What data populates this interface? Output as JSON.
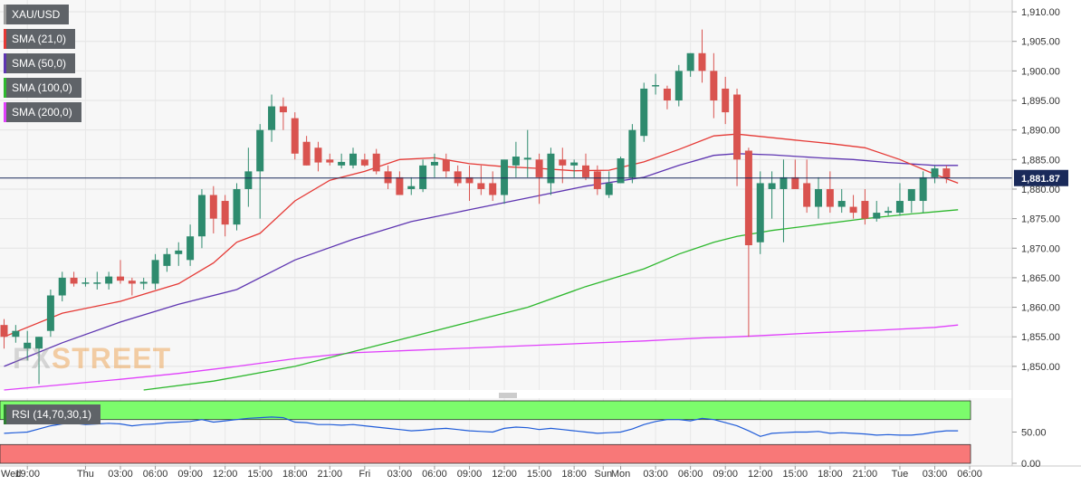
{
  "watermark": {
    "part1": "FX",
    "part2": "STREET"
  },
  "legend": [
    {
      "label": "XAU/USD",
      "color": "#9e9e9e"
    },
    {
      "label": "SMA (21,0)",
      "color": "#e53935"
    },
    {
      "label": "SMA (50,0)",
      "color": "#5e35b1"
    },
    {
      "label": "SMA (100,0)",
      "color": "#2eb82e"
    },
    {
      "label": "SMA (200,0)",
      "color": "#e040fb"
    }
  ],
  "chart_data": {
    "type": "candlestick",
    "instrument": "XAU/USD",
    "price_axis": {
      "range": [
        1846,
        1912
      ],
      "ticks": [
        "1,910.00",
        "1,905.00",
        "1,900.00",
        "1,895.00",
        "1,890.00",
        "1,885.00",
        "1,880.00",
        "1,875.00",
        "1,870.00",
        "1,865.00",
        "1,860.00",
        "1,855.00",
        "1,850.00"
      ],
      "tick_values": [
        1910,
        1905,
        1900,
        1895,
        1890,
        1885,
        1880,
        1875,
        1870,
        1865,
        1860,
        1855,
        1850
      ]
    },
    "last_price": {
      "value": 1881.87,
      "label": "1,881.87"
    },
    "time_axis": {
      "labels": [
        "Wed",
        "19:00",
        "Thu",
        "03:00",
        "06:00",
        "09:00",
        "12:00",
        "15:00",
        "18:00",
        "21:00",
        "Fri",
        "03:00",
        "06:00",
        "09:00",
        "12:00",
        "15:00",
        "18:00",
        "Sun",
        "Mon",
        "03:00",
        "06:00",
        "09:00",
        "12:00",
        "15:00",
        "18:00",
        "21:00",
        "Tue",
        "03:00",
        "06:00"
      ],
      "positions": [
        -1,
        2,
        7,
        10,
        13,
        16,
        19,
        22,
        25,
        28,
        31,
        34,
        37,
        40,
        43,
        46,
        49,
        51.5,
        53,
        56,
        59,
        62,
        65,
        68,
        71,
        74,
        77,
        80,
        83
      ]
    },
    "candles": [
      {
        "o": 1857.0,
        "h": 1858.0,
        "l": 1853.0,
        "c": 1855.0
      },
      {
        "o": 1855.0,
        "h": 1857.0,
        "l": 1854.0,
        "c": 1856.0
      },
      {
        "o": 1853.0,
        "h": 1856.0,
        "l": 1851.0,
        "c": 1854.0
      },
      {
        "o": 1853.0,
        "h": 1855.0,
        "l": 1847.0,
        "c": 1855.0
      },
      {
        "o": 1856.0,
        "h": 1863.0,
        "l": 1855.0,
        "c": 1862.0
      },
      {
        "o": 1862.0,
        "h": 1866.0,
        "l": 1861.0,
        "c": 1865.0
      },
      {
        "o": 1865.0,
        "h": 1866.0,
        "l": 1863.5,
        "c": 1864.0
      },
      {
        "o": 1864.0,
        "h": 1865.0,
        "l": 1863.5,
        "c": 1864.2
      },
      {
        "o": 1864.0,
        "h": 1866.0,
        "l": 1863.0,
        "c": 1864.2
      },
      {
        "o": 1864.0,
        "h": 1866.0,
        "l": 1863.0,
        "c": 1865.2
      },
      {
        "o": 1865.2,
        "h": 1868.0,
        "l": 1864.0,
        "c": 1864.5
      },
      {
        "o": 1864.5,
        "h": 1865.0,
        "l": 1862.0,
        "c": 1864.0
      },
      {
        "o": 1864.0,
        "h": 1865.0,
        "l": 1863.0,
        "c": 1864.3
      },
      {
        "o": 1864.0,
        "h": 1869.0,
        "l": 1863.0,
        "c": 1868.0
      },
      {
        "o": 1867.0,
        "h": 1870.0,
        "l": 1866.0,
        "c": 1869.0
      },
      {
        "o": 1869.0,
        "h": 1871.0,
        "l": 1867.0,
        "c": 1869.6
      },
      {
        "o": 1868.0,
        "h": 1874.0,
        "l": 1867.0,
        "c": 1872.0
      },
      {
        "o": 1872.0,
        "h": 1880.0,
        "l": 1870.0,
        "c": 1879.0
      },
      {
        "o": 1879.0,
        "h": 1880.5,
        "l": 1872.5,
        "c": 1875.0
      },
      {
        "o": 1878.0,
        "h": 1879.0,
        "l": 1872.0,
        "c": 1874.0
      },
      {
        "o": 1874.0,
        "h": 1881.0,
        "l": 1873.0,
        "c": 1880.0
      },
      {
        "o": 1880.0,
        "h": 1887.0,
        "l": 1877.0,
        "c": 1883.0
      },
      {
        "o": 1883.0,
        "h": 1891.0,
        "l": 1875.0,
        "c": 1890.0
      },
      {
        "o": 1890.0,
        "h": 1896.0,
        "l": 1888.0,
        "c": 1894.0
      },
      {
        "o": 1894.0,
        "h": 1895.5,
        "l": 1890.0,
        "c": 1893.0
      },
      {
        "o": 1892.0,
        "h": 1893.0,
        "l": 1885.0,
        "c": 1886.0
      },
      {
        "o": 1888.0,
        "h": 1889.0,
        "l": 1884.0,
        "c": 1884.0
      },
      {
        "o": 1887.0,
        "h": 1888.0,
        "l": 1883.0,
        "c": 1884.5
      },
      {
        "o": 1885.0,
        "h": 1886.0,
        "l": 1884.0,
        "c": 1884.5
      },
      {
        "o": 1884.0,
        "h": 1886.0,
        "l": 1883.5,
        "c": 1884.6
      },
      {
        "o": 1884.0,
        "h": 1887.0,
        "l": 1883.5,
        "c": 1886.0
      },
      {
        "o": 1885.0,
        "h": 1886.0,
        "l": 1883.8,
        "c": 1884.0
      },
      {
        "o": 1886.0,
        "h": 1886.8,
        "l": 1882.5,
        "c": 1883.0
      },
      {
        "o": 1883.0,
        "h": 1884.0,
        "l": 1880.0,
        "c": 1881.0
      },
      {
        "o": 1882.0,
        "h": 1883.0,
        "l": 1879.0,
        "c": 1879.0
      },
      {
        "o": 1880.0,
        "h": 1882.0,
        "l": 1879.0,
        "c": 1880.5
      },
      {
        "o": 1880.0,
        "h": 1885.0,
        "l": 1879.5,
        "c": 1884.0
      },
      {
        "o": 1884.0,
        "h": 1886.0,
        "l": 1882.0,
        "c": 1884.6
      },
      {
        "o": 1885.0,
        "h": 1886.0,
        "l": 1882.0,
        "c": 1883.0
      },
      {
        "o": 1883.0,
        "h": 1884.0,
        "l": 1880.5,
        "c": 1881.0
      },
      {
        "o": 1882.0,
        "h": 1884.0,
        "l": 1878.0,
        "c": 1881.0
      },
      {
        "o": 1881.0,
        "h": 1884.0,
        "l": 1879.0,
        "c": 1880.0
      },
      {
        "o": 1881.0,
        "h": 1883.0,
        "l": 1878.0,
        "c": 1879.0
      },
      {
        "o": 1879.0,
        "h": 1885.0,
        "l": 1877.5,
        "c": 1885.0
      },
      {
        "o": 1884.0,
        "h": 1888.0,
        "l": 1882.0,
        "c": 1885.5
      },
      {
        "o": 1885.0,
        "h": 1890.0,
        "l": 1882.0,
        "c": 1885.3
      },
      {
        "o": 1885.0,
        "h": 1886.0,
        "l": 1877.5,
        "c": 1882.0
      },
      {
        "o": 1881.0,
        "h": 1887.0,
        "l": 1879.0,
        "c": 1886.0
      },
      {
        "o": 1885.0,
        "h": 1887.0,
        "l": 1881.0,
        "c": 1884.0
      },
      {
        "o": 1884.0,
        "h": 1885.0,
        "l": 1882.0,
        "c": 1884.5
      },
      {
        "o": 1884.0,
        "h": 1886.0,
        "l": 1881.5,
        "c": 1882.0
      },
      {
        "o": 1883.0,
        "h": 1884.0,
        "l": 1879.0,
        "c": 1880.0
      },
      {
        "o": 1879.0,
        "h": 1883.0,
        "l": 1878.5,
        "c": 1881.0
      },
      {
        "o": 1881.0,
        "h": 1885.5,
        "l": 1881.0,
        "c": 1885.2
      },
      {
        "o": 1882.0,
        "h": 1891.0,
        "l": 1881.0,
        "c": 1890.0
      },
      {
        "o": 1889.0,
        "h": 1898.0,
        "l": 1888.0,
        "c": 1897.0
      },
      {
        "o": 1897.5,
        "h": 1899.5,
        "l": 1896.0,
        "c": 1897.6
      },
      {
        "o": 1897.0,
        "h": 1897.5,
        "l": 1893.5,
        "c": 1895.0
      },
      {
        "o": 1895.0,
        "h": 1901.0,
        "l": 1894.0,
        "c": 1900.0
      },
      {
        "o": 1900.0,
        "h": 1903.0,
        "l": 1899.0,
        "c": 1903.0
      },
      {
        "o": 1903.0,
        "h": 1907.0,
        "l": 1898.0,
        "c": 1900.0
      },
      {
        "o": 1900.0,
        "h": 1903.0,
        "l": 1892.0,
        "c": 1895.0
      },
      {
        "o": 1897.0,
        "h": 1899.0,
        "l": 1891.0,
        "c": 1893.0
      },
      {
        "o": 1896.0,
        "h": 1897.0,
        "l": 1880.5,
        "c": 1885.0
      },
      {
        "o": 1886.5,
        "h": 1887.0,
        "l": 1855.0,
        "c": 1870.5
      },
      {
        "o": 1871.0,
        "h": 1883.0,
        "l": 1869.0,
        "c": 1881.0
      },
      {
        "o": 1880.0,
        "h": 1883.0,
        "l": 1875.0,
        "c": 1881.0
      },
      {
        "o": 1880.0,
        "h": 1885.0,
        "l": 1871.0,
        "c": 1882.0
      },
      {
        "o": 1882.0,
        "h": 1885.0,
        "l": 1880.0,
        "c": 1880.0
      },
      {
        "o": 1881.0,
        "h": 1885.0,
        "l": 1876.0,
        "c": 1877.0
      },
      {
        "o": 1877.0,
        "h": 1882.0,
        "l": 1875.0,
        "c": 1880.0
      },
      {
        "o": 1880.0,
        "h": 1883.0,
        "l": 1876.0,
        "c": 1877.0
      },
      {
        "o": 1877.0,
        "h": 1880.0,
        "l": 1876.0,
        "c": 1878.0
      },
      {
        "o": 1877.0,
        "h": 1879.0,
        "l": 1875.0,
        "c": 1876.0
      },
      {
        "o": 1878.0,
        "h": 1880.0,
        "l": 1874.0,
        "c": 1875.0
      },
      {
        "o": 1875.0,
        "h": 1878.0,
        "l": 1874.5,
        "c": 1876.0
      },
      {
        "o": 1876.0,
        "h": 1877.0,
        "l": 1875.5,
        "c": 1876.3
      },
      {
        "o": 1876.0,
        "h": 1881.0,
        "l": 1875.5,
        "c": 1878.0
      },
      {
        "o": 1878.0,
        "h": 1880.0,
        "l": 1876.0,
        "c": 1880.0
      },
      {
        "o": 1878.0,
        "h": 1883.0,
        "l": 1876.0,
        "c": 1882.0
      },
      {
        "o": 1882.0,
        "h": 1884.0,
        "l": 1881.0,
        "c": 1883.5
      },
      {
        "o": 1883.5,
        "h": 1884.0,
        "l": 1881.0,
        "c": 1881.9
      }
    ],
    "sma21": [
      [
        0,
        1855
      ],
      [
        5,
        1859
      ],
      [
        10,
        1861
      ],
      [
        15,
        1864
      ],
      [
        18,
        1867.5
      ],
      [
        20,
        1871
      ],
      [
        22,
        1872.5
      ],
      [
        25,
        1878
      ],
      [
        28,
        1881.5
      ],
      [
        31,
        1883
      ],
      [
        34,
        1885
      ],
      [
        37,
        1885.3
      ],
      [
        40,
        1884.3
      ],
      [
        43,
        1883.8
      ],
      [
        46,
        1883.5
      ],
      [
        49,
        1883.1
      ],
      [
        52,
        1883.2
      ],
      [
        55,
        1884.6
      ],
      [
        58,
        1886.7
      ],
      [
        61,
        1889
      ],
      [
        63,
        1889.3
      ],
      [
        65,
        1888.9
      ],
      [
        68,
        1888.3
      ],
      [
        71,
        1887.7
      ],
      [
        74,
        1887
      ],
      [
        77,
        1885
      ],
      [
        80,
        1882.5
      ],
      [
        82,
        1881
      ]
    ],
    "sma50": [
      [
        0,
        1850
      ],
      [
        5,
        1854
      ],
      [
        10,
        1857.5
      ],
      [
        15,
        1860.5
      ],
      [
        20,
        1863
      ],
      [
        25,
        1868
      ],
      [
        30,
        1871.5
      ],
      [
        35,
        1874.5
      ],
      [
        40,
        1876.5
      ],
      [
        45,
        1878.5
      ],
      [
        50,
        1880.5
      ],
      [
        55,
        1882
      ],
      [
        58,
        1884
      ],
      [
        61,
        1885.7
      ],
      [
        63,
        1886
      ],
      [
        66,
        1885.8
      ],
      [
        70,
        1885.3
      ],
      [
        73,
        1885
      ],
      [
        76,
        1884.5
      ],
      [
        80,
        1884
      ],
      [
        82,
        1884
      ]
    ],
    "sma100": [
      [
        12,
        1846
      ],
      [
        18,
        1847.5
      ],
      [
        25,
        1850
      ],
      [
        30,
        1852.5
      ],
      [
        35,
        1855
      ],
      [
        40,
        1857.5
      ],
      [
        45,
        1860
      ],
      [
        50,
        1863.5
      ],
      [
        55,
        1866.5
      ],
      [
        58,
        1869
      ],
      [
        61,
        1871
      ],
      [
        63,
        1872
      ],
      [
        66,
        1873
      ],
      [
        70,
        1874
      ],
      [
        74,
        1875
      ],
      [
        78,
        1875.8
      ],
      [
        82,
        1876.5
      ]
    ],
    "sma200": [
      [
        0,
        1846
      ],
      [
        5,
        1846.9
      ],
      [
        10,
        1847.8
      ],
      [
        15,
        1848.8
      ],
      [
        20,
        1850
      ],
      [
        25,
        1851.3
      ],
      [
        30,
        1852.3
      ],
      [
        35,
        1852.7
      ],
      [
        40,
        1853.1
      ],
      [
        45,
        1853.5
      ],
      [
        50,
        1853.9
      ],
      [
        55,
        1854.3
      ],
      [
        60,
        1854.8
      ],
      [
        63,
        1855
      ],
      [
        66,
        1855.3
      ],
      [
        70,
        1855.7
      ],
      [
        75,
        1856.1
      ],
      [
        80,
        1856.6
      ],
      [
        82,
        1857
      ]
    ],
    "rsi": {
      "label": "RSI (14,70,30,1)",
      "range": [
        0,
        100
      ],
      "ticks": [
        "50.00",
        "0.00"
      ],
      "tick_values": [
        50,
        0
      ],
      "overbought": 70,
      "oversold": 30,
      "values": [
        48,
        49,
        50,
        55,
        60,
        63,
        64,
        62,
        63,
        64,
        63,
        60,
        62,
        63,
        65,
        66,
        67,
        70,
        66,
        68,
        70,
        72,
        73,
        74,
        73,
        66,
        65,
        62,
        62,
        61,
        62,
        60,
        58,
        56,
        54,
        52,
        53,
        55,
        56,
        54,
        52,
        51,
        50,
        56,
        58,
        57,
        54,
        56,
        54,
        52,
        50,
        48,
        49,
        50,
        55,
        62,
        67,
        70,
        70,
        68,
        72,
        70,
        65,
        60,
        52,
        43,
        48,
        49,
        50,
        50,
        51,
        48,
        49,
        48,
        47,
        45,
        46,
        45,
        45,
        47,
        50,
        52,
        52
      ]
    }
  }
}
